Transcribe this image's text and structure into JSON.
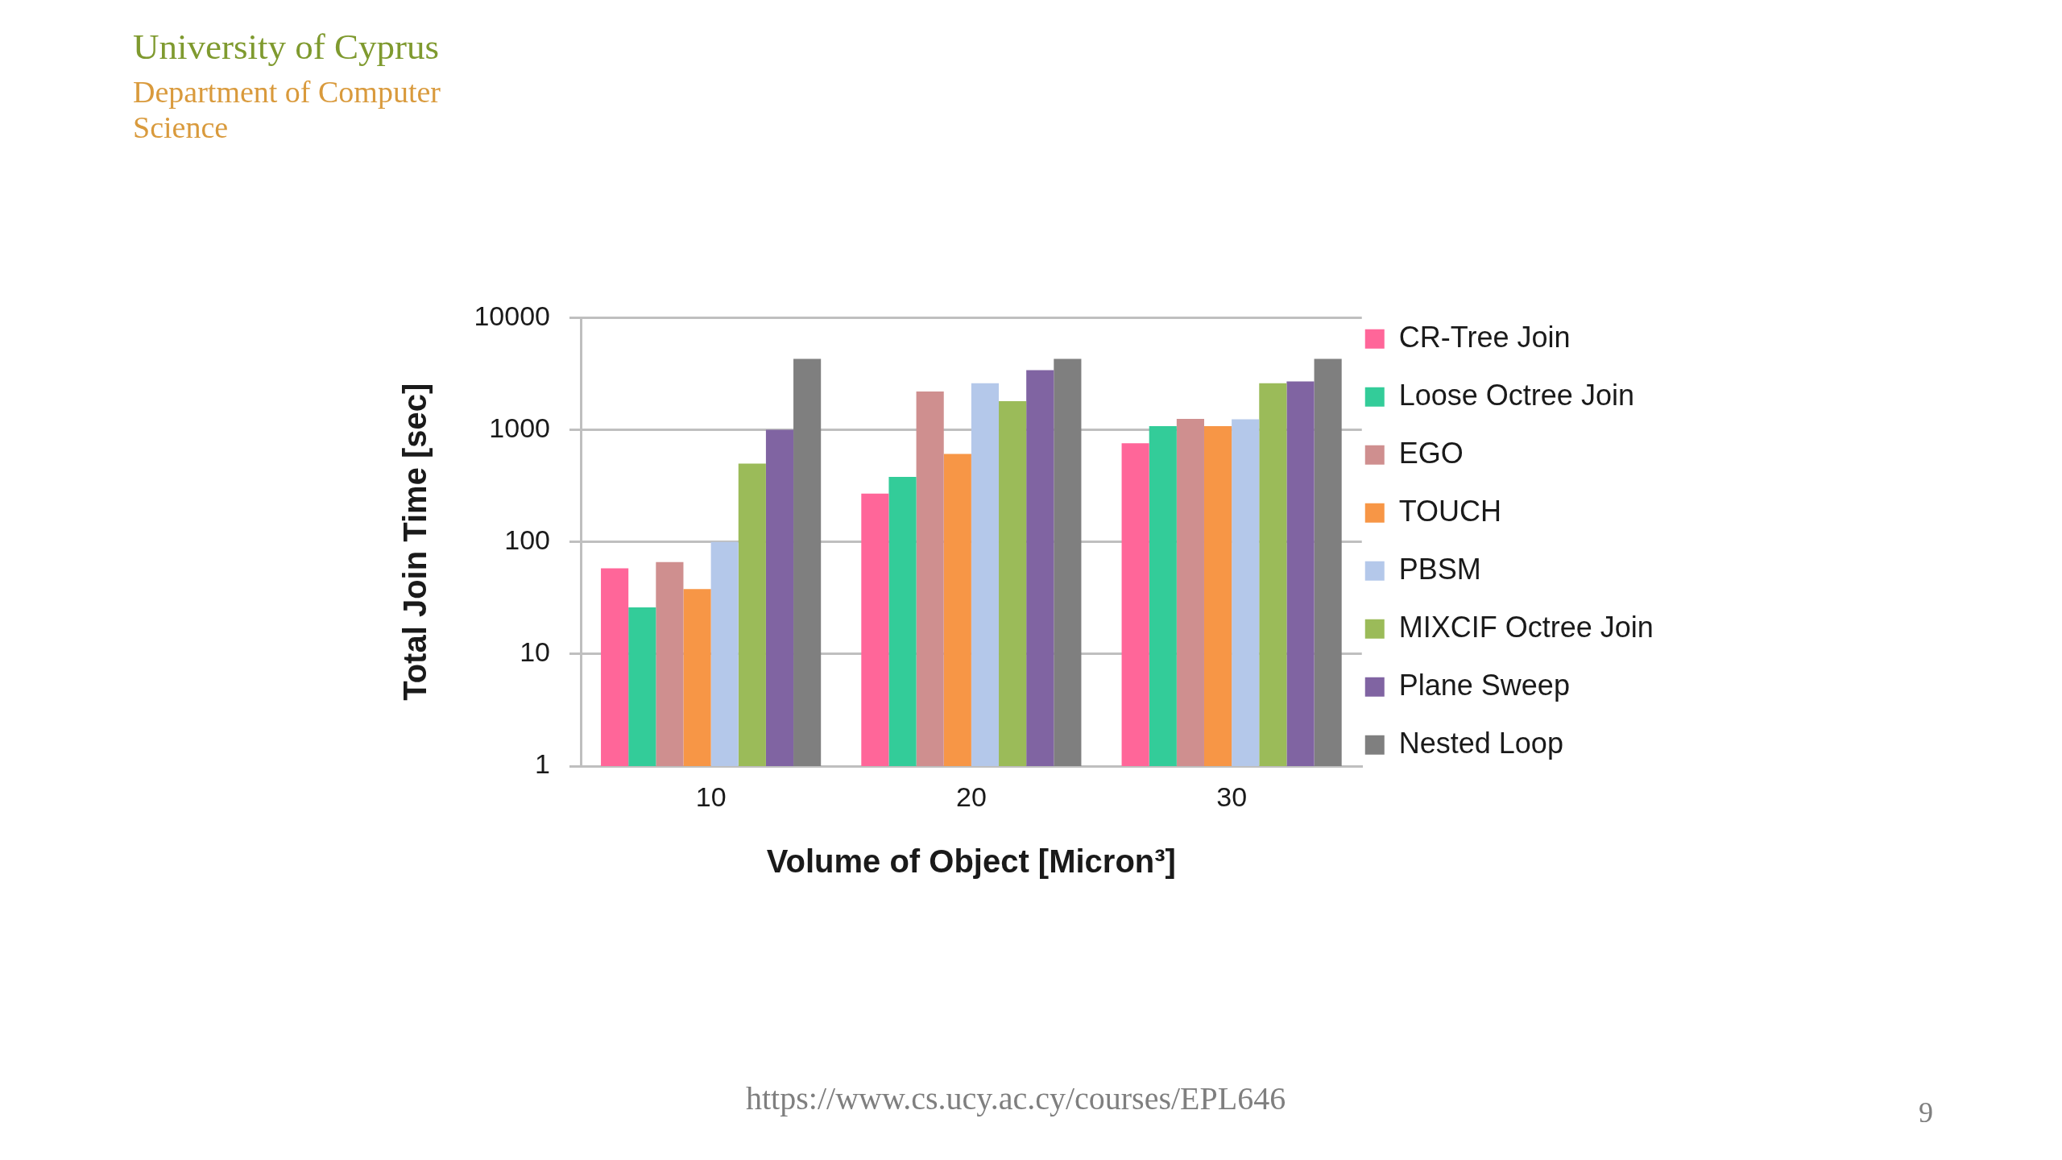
{
  "chart_data": {
    "type": "bar",
    "xlabel": "Volume of Object [Micron³]",
    "ylabel": "Total Join Time [sec]",
    "categories": [
      "10",
      "20",
      "30"
    ],
    "series": [
      {
        "name": "CR-Tree Join",
        "color": "#ff6699",
        "values": [
          58,
          270,
          760
        ]
      },
      {
        "name": "Loose Octree Join",
        "color": "#33cc99",
        "values": [
          26,
          380,
          1080
        ]
      },
      {
        "name": "EGO",
        "color": "#cf8f8f",
        "values": [
          66,
          2200,
          1250
        ]
      },
      {
        "name": "TOUCH",
        "color": "#f79646",
        "values": [
          38,
          610,
          1080
        ]
      },
      {
        "name": "PBSM",
        "color": "#b4c8ea",
        "values": [
          100,
          2600,
          1240
        ]
      },
      {
        "name": "MIXCIF Octree Join",
        "color": "#9bbb59",
        "values": [
          500,
          1800,
          2600
        ]
      },
      {
        "name": "Plane Sweep",
        "color": "#8064a2",
        "values": [
          1000,
          3400,
          2700
        ]
      },
      {
        "name": "Nested Loop",
        "color": "#7f7f7f",
        "values": [
          4300,
          4300,
          4300
        ]
      }
    ],
    "ylim": [
      1,
      10000
    ],
    "yticks": [
      1,
      10,
      100,
      1000,
      10000
    ],
    "log": "y",
    "grid": "y",
    "legend": "right",
    "annotations": [
      "University of Cyprus",
      "Department of Computer Science",
      "https://www.cs.ucy.ac.cy/courses/EPL646",
      "9"
    ]
  }
}
